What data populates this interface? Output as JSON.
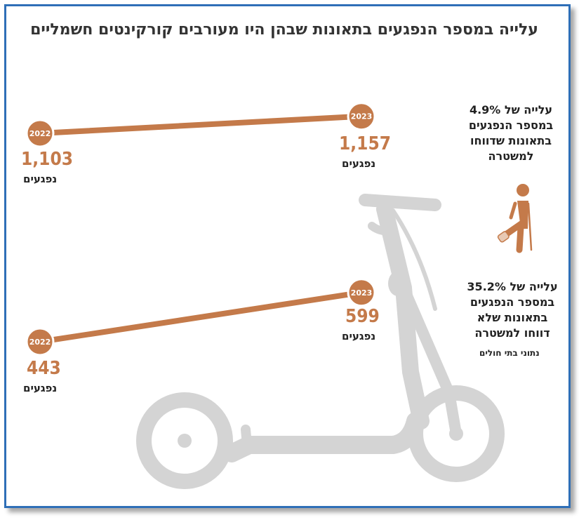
{
  "title": "עלייה במספר הנפגעים בתאונות שבהן היו מעורבים קורקינטים חשמליים",
  "colors": {
    "accent": "#c47a4a",
    "scooter": "#d4d4d4",
    "frame": "#2f6fb7",
    "text": "#222222"
  },
  "chart_data": [
    {
      "type": "line",
      "categories": [
        "2022",
        "2023"
      ],
      "values": [
        1103,
        1157
      ],
      "value_labels": [
        "1,103",
        "1,157"
      ],
      "unit_label": "נפגעים",
      "note": [
        "עלייה של 4.9%",
        "במספר הנפגעים",
        "בתאונות שדווחו",
        "למשטרה"
      ]
    },
    {
      "type": "line",
      "categories": [
        "2022",
        "2023"
      ],
      "values": [
        443,
        599
      ],
      "value_labels": [
        "443",
        "599"
      ],
      "unit_label": "נפגעים",
      "note": [
        "עלייה של 35.2%",
        "במספר הנפגעים",
        "בתאונות שלא",
        "דווחו למשטרה"
      ],
      "source": "נתוני בתי חולים"
    }
  ],
  "icons": {
    "decorative": [
      "electric-scooter-icon",
      "injured-person-icon"
    ]
  }
}
